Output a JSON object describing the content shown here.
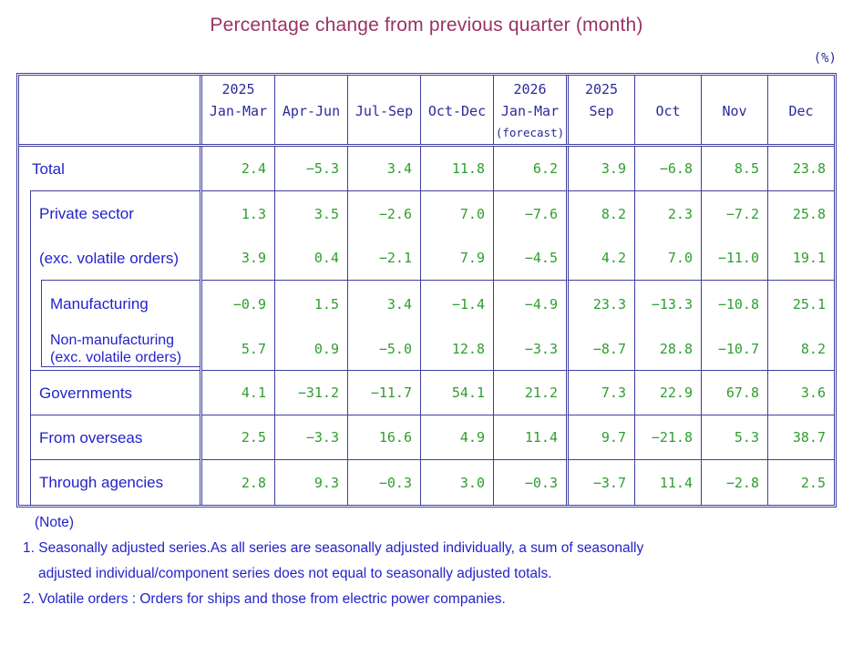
{
  "page": {
    "title": "Percentage change from previous quarter (month)",
    "unit_label": "(%)"
  },
  "table": {
    "column_headers": [
      {
        "lines": [
          "2025",
          "Jan-Mar"
        ]
      },
      {
        "lines": [
          "",
          "Apr-Jun"
        ]
      },
      {
        "lines": [
          "",
          "Jul-Sep"
        ]
      },
      {
        "lines": [
          "",
          "Oct-Dec"
        ]
      },
      {
        "lines": [
          "2026",
          "Jan-Mar",
          "(forecast)"
        ]
      },
      {
        "lines": [
          "2025",
          "Sep"
        ]
      },
      {
        "lines": [
          "",
          "Oct"
        ]
      },
      {
        "lines": [
          "",
          "Nov"
        ]
      },
      {
        "lines": [
          "",
          "Dec"
        ]
      }
    ],
    "rows": [
      {
        "label_lines": [
          "Total"
        ],
        "level": 0,
        "values": [
          "2.4",
          "-5.3",
          "3.4",
          "11.8",
          "6.2",
          "3.9",
          "-6.8",
          "8.5",
          "23.8"
        ]
      },
      {
        "label_lines": [
          "Private sector"
        ],
        "level": 1,
        "values": [
          "1.3",
          "3.5",
          "-2.6",
          "7.0",
          "-7.6",
          "8.2",
          "2.3",
          "-7.2",
          "25.8"
        ]
      },
      {
        "label_lines": [
          "(exc. volatile orders)"
        ],
        "level": 1,
        "values": [
          "3.9",
          "0.4",
          "-2.1",
          "7.9",
          "-4.5",
          "4.2",
          "7.0",
          "-11.0",
          "19.1"
        ]
      },
      {
        "label_lines": [
          "Manufacturing"
        ],
        "level": 2,
        "values": [
          "-0.9",
          "1.5",
          "3.4",
          "-1.4",
          "-4.9",
          "23.3",
          "-13.3",
          "-10.8",
          "25.1"
        ]
      },
      {
        "label_lines": [
          "Non-manufacturing",
          "(exc. volatile orders)"
        ],
        "level": 2,
        "values": [
          "5.7",
          "0.9",
          "-5.0",
          "12.8",
          "-3.3",
          "-8.7",
          "28.8",
          "-10.7",
          "8.2"
        ]
      },
      {
        "label_lines": [
          "Governments"
        ],
        "level": 1,
        "values": [
          "4.1",
          "-31.2",
          "-11.7",
          "54.1",
          "21.2",
          "7.3",
          "22.9",
          "67.8",
          "3.6"
        ]
      },
      {
        "label_lines": [
          "From overseas"
        ],
        "level": 1,
        "values": [
          "2.5",
          "-3.3",
          "16.6",
          "4.9",
          "11.4",
          "9.7",
          "-21.8",
          "5.3",
          "38.7"
        ]
      },
      {
        "label_lines": [
          "Through agencies"
        ],
        "level": 1,
        "values": [
          "2.8",
          "9.3",
          "-0.3",
          "3.0",
          "-0.3",
          "-3.7",
          "11.4",
          "-2.8",
          "2.5"
        ]
      }
    ]
  },
  "notes": {
    "heading": "(Note)",
    "note1_line1": "1. Seasonally adjusted series.As all series are seasonally adjusted individually,  a sum of seasonally",
    "note1_line2": "adjusted individual/component series does not equal to seasonally adjusted totals.",
    "note2": "2. Volatile orders : Orders for ships and those from electric power companies."
  },
  "colors": {
    "border": "#3f3f9f",
    "label_text": "#2323cb",
    "value_text": "#2f9e2f",
    "title_text": "#993366"
  }
}
